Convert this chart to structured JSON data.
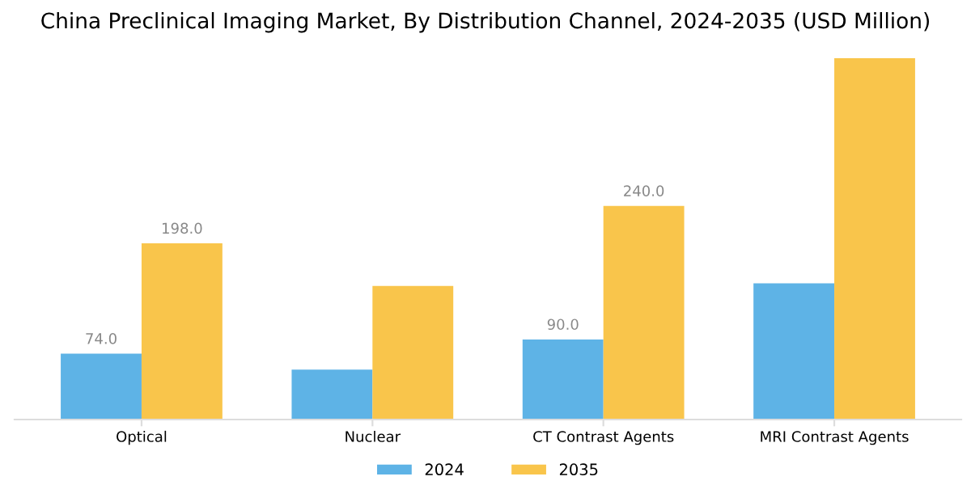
{
  "chart_data": {
    "type": "bar",
    "title": "China Preclinical Imaging Market, By Distribution Channel, 2024-2035 (USD Million)",
    "categories": [
      "Optical",
      "Nuclear",
      "CT Contrast Agents",
      "MRI Contrast Agents"
    ],
    "series": [
      {
        "name": "2024",
        "color": "#5eb3e6",
        "values": [
          74,
          56,
          90,
          153
        ],
        "value_labels": [
          "74.0",
          null,
          "90.0",
          null
        ]
      },
      {
        "name": "2035",
        "color": "#f9c54b",
        "values": [
          198,
          150,
          240,
          406
        ],
        "value_labels": [
          "198.0",
          null,
          "240.0",
          null
        ]
      }
    ],
    "legend": "bottom",
    "grid": false
  }
}
